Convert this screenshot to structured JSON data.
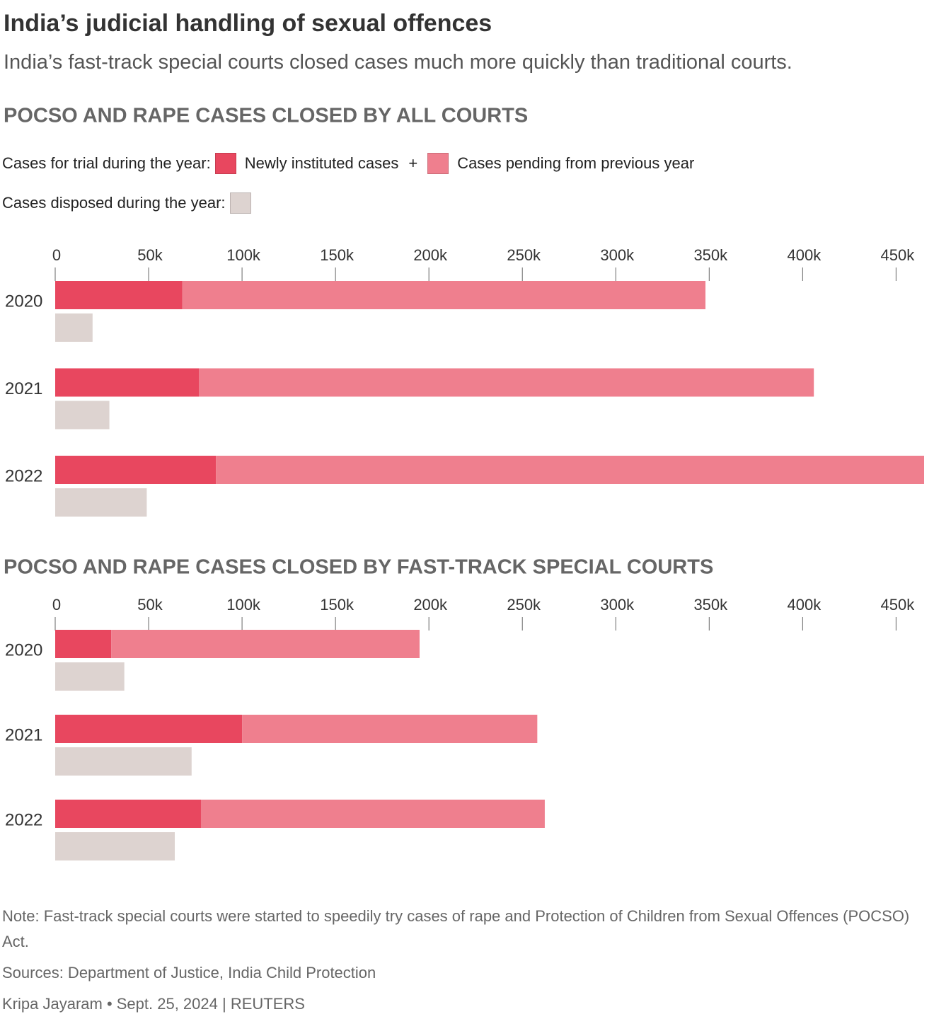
{
  "title": "India’s judicial handling of sexual offences",
  "subtitle": "India’s fast-track special courts closed cases much more quickly than traditional courts.",
  "legend": {
    "trial_label": "Cases for trial during the year:",
    "plus": "+",
    "disposed_label": "Cases disposed during the year:"
  },
  "note": "Note: Fast-track special courts were started to speedily try cases of rape and Protection of Children from Sexual Offences (POCSO) Act.",
  "sources": "Sources: Department of Justice, India Child Protection",
  "credit": "Kripa Jayaram • Sept. 25, 2024 | REUTERS",
  "chart_data": [
    {
      "type": "bar",
      "orientation": "horizontal",
      "title": "POCSO AND RAPE CASES CLOSED BY ALL COURTS",
      "categories": [
        "2020",
        "2021",
        "2022"
      ],
      "series": [
        {
          "name": "Newly instituted cases",
          "color": "#e8475f",
          "stack": "trial",
          "values": [
            68000,
            77000,
            86000
          ]
        },
        {
          "name": "Cases pending from previous year",
          "color": "#ef7f8e",
          "stack": "trial",
          "values": [
            280000,
            329000,
            379000
          ]
        },
        {
          "color": "#ddd3d0",
          "stack": "disposed",
          "values": [
            20000,
            29000,
            49000
          ]
        }
      ],
      "xlim": [
        0,
        465000
      ],
      "xticks": [
        0,
        {
          "value": 50000,
          "label": "50k"
        },
        {
          "value": 100000,
          "label": "100k"
        },
        {
          "value": 150000,
          "label": "150k"
        },
        {
          "value": 200000,
          "label": "200k"
        },
        {
          "value": 250000,
          "label": "250k"
        },
        {
          "value": 300000,
          "label": "300k"
        },
        {
          "value": 350000,
          "label": "350k"
        },
        {
          "value": 400000,
          "label": "400k"
        },
        {
          "value": 450000,
          "label": "450k"
        }
      ]
    },
    {
      "type": "bar",
      "orientation": "horizontal",
      "title": "POCSO AND RAPE CASES CLOSED BY FAST-TRACK SPECIAL COURTS",
      "categories": [
        "2020",
        "2021",
        "2022"
      ],
      "series": [
        {
          "color": "#e8475f",
          "stack": "trial",
          "values": [
            30000,
            100000,
            78000
          ]
        },
        {
          "color": "#ef7f8e",
          "stack": "trial",
          "values": [
            165000,
            158000,
            184000
          ]
        },
        {
          "color": "#ddd3d0",
          "stack": "disposed",
          "values": [
            37000,
            73000,
            64000
          ]
        }
      ],
      "xlim": [
        0,
        465000
      ],
      "xticks": [
        0,
        {
          "value": 50000,
          "label": "50k"
        },
        {
          "value": 100000,
          "label": "100k"
        },
        {
          "value": 150000,
          "label": "150k"
        },
        {
          "value": 200000,
          "label": "200k"
        },
        {
          "value": 250000,
          "label": "250k"
        },
        {
          "value": 300000,
          "label": "300k"
        },
        {
          "value": 350000,
          "label": "350k"
        },
        {
          "value": 400000,
          "label": "400k"
        },
        {
          "value": 450000,
          "label": "450k"
        }
      ]
    }
  ]
}
